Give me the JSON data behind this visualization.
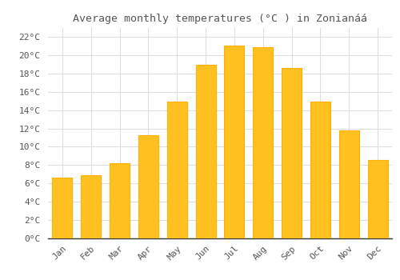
{
  "title": "Average monthly temperatures (°C ) in Zonianáá",
  "months": [
    "Jan",
    "Feb",
    "Mar",
    "Apr",
    "May",
    "Jun",
    "Jul",
    "Aug",
    "Sep",
    "Oct",
    "Nov",
    "Dec"
  ],
  "values": [
    6.6,
    6.9,
    8.2,
    11.3,
    14.9,
    19.0,
    21.1,
    20.9,
    18.6,
    14.9,
    11.8,
    8.5
  ],
  "bar_color": "#FFC020",
  "bar_edge_color": "#FFB000",
  "background_color": "#FFFFFF",
  "grid_color": "#DDDDDD",
  "text_color": "#555555",
  "spine_color": "#333333",
  "ylim": [
    0,
    23
  ],
  "yticks": [
    0,
    2,
    4,
    6,
    8,
    10,
    12,
    14,
    16,
    18,
    20,
    22
  ],
  "title_fontsize": 9.5,
  "tick_fontsize": 8,
  "font_family": "monospace",
  "bar_width": 0.7
}
